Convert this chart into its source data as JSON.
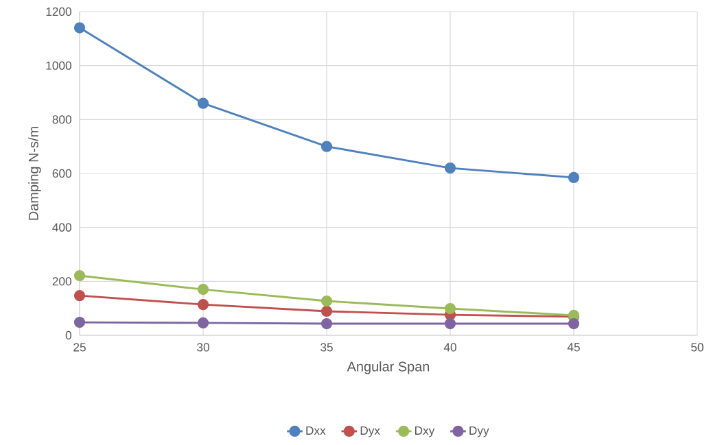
{
  "chart_data": {
    "type": "line",
    "xlabel": "Angular Span",
    "ylabel": "Damping N-s/m",
    "x": [
      25,
      30,
      35,
      40,
      45
    ],
    "series": [
      {
        "name": "Dxx",
        "color": "#4f81bd",
        "values": [
          1140,
          860,
          700,
          620,
          585
        ]
      },
      {
        "name": "Dyx",
        "color": "#c0504d",
        "values": [
          147,
          114,
          89,
          76,
          69
        ]
      },
      {
        "name": "Dxy",
        "color": "#9bbb59",
        "values": [
          221,
          170,
          127,
          99,
          74
        ]
      },
      {
        "name": "Dyy",
        "color": "#8064a2",
        "values": [
          48,
          46,
          43,
          43,
          43
        ]
      }
    ],
    "xlim": [
      25,
      50
    ],
    "xticks": [
      25,
      30,
      35,
      40,
      45,
      50
    ],
    "ylim": [
      0,
      1200
    ],
    "yticks": [
      0,
      200,
      400,
      600,
      800,
      1000,
      1200
    ],
    "grid": true,
    "legend": "bottom",
    "marker": "circle",
    "line_style": "solid"
  }
}
